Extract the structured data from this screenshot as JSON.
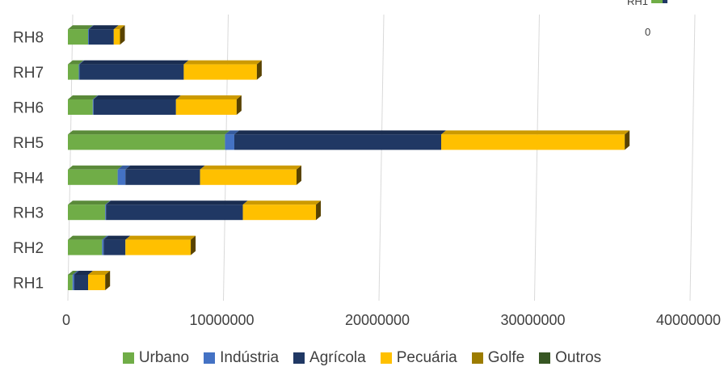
{
  "chart_data": {
    "type": "bar",
    "orientation": "horizontal",
    "stacked": true,
    "categories": [
      "RH1",
      "RH2",
      "RH3",
      "RH4",
      "RH5",
      "RH6",
      "RH7",
      "RH8"
    ],
    "series": [
      {
        "name": "Urbano",
        "color": "#70ad47",
        "values": [
          300000,
          2200000,
          2400000,
          3200000,
          10100000,
          1600000,
          700000,
          1300000
        ]
      },
      {
        "name": "Indústria",
        "color": "#4472c4",
        "values": [
          100000,
          100000,
          50000,
          500000,
          600000,
          50000,
          50000,
          50000
        ]
      },
      {
        "name": "Agrícola",
        "color": "#203864",
        "values": [
          900000,
          1400000,
          8800000,
          4800000,
          13300000,
          5300000,
          6700000,
          1600000
        ]
      },
      {
        "name": "Pecuária",
        "color": "#ffc000",
        "values": [
          1100000,
          4200000,
          4700000,
          6200000,
          11800000,
          3900000,
          4700000,
          400000
        ]
      },
      {
        "name": "Golfe",
        "color": "#9c7c00",
        "values": [
          0,
          0,
          0,
          0,
          0,
          0,
          0,
          0
        ]
      },
      {
        "name": "Outros",
        "color": "#375623",
        "values": [
          0,
          0,
          0,
          0,
          0,
          0,
          0,
          0
        ]
      }
    ],
    "xlim": [
      0,
      40000000
    ],
    "x_ticks": [
      "0",
      "10000000",
      "20000000",
      "30000000",
      "40000000"
    ],
    "grid": true,
    "legend_position": "bottom",
    "inset_fragment": {
      "label": "RH1",
      "tick": "0"
    }
  }
}
